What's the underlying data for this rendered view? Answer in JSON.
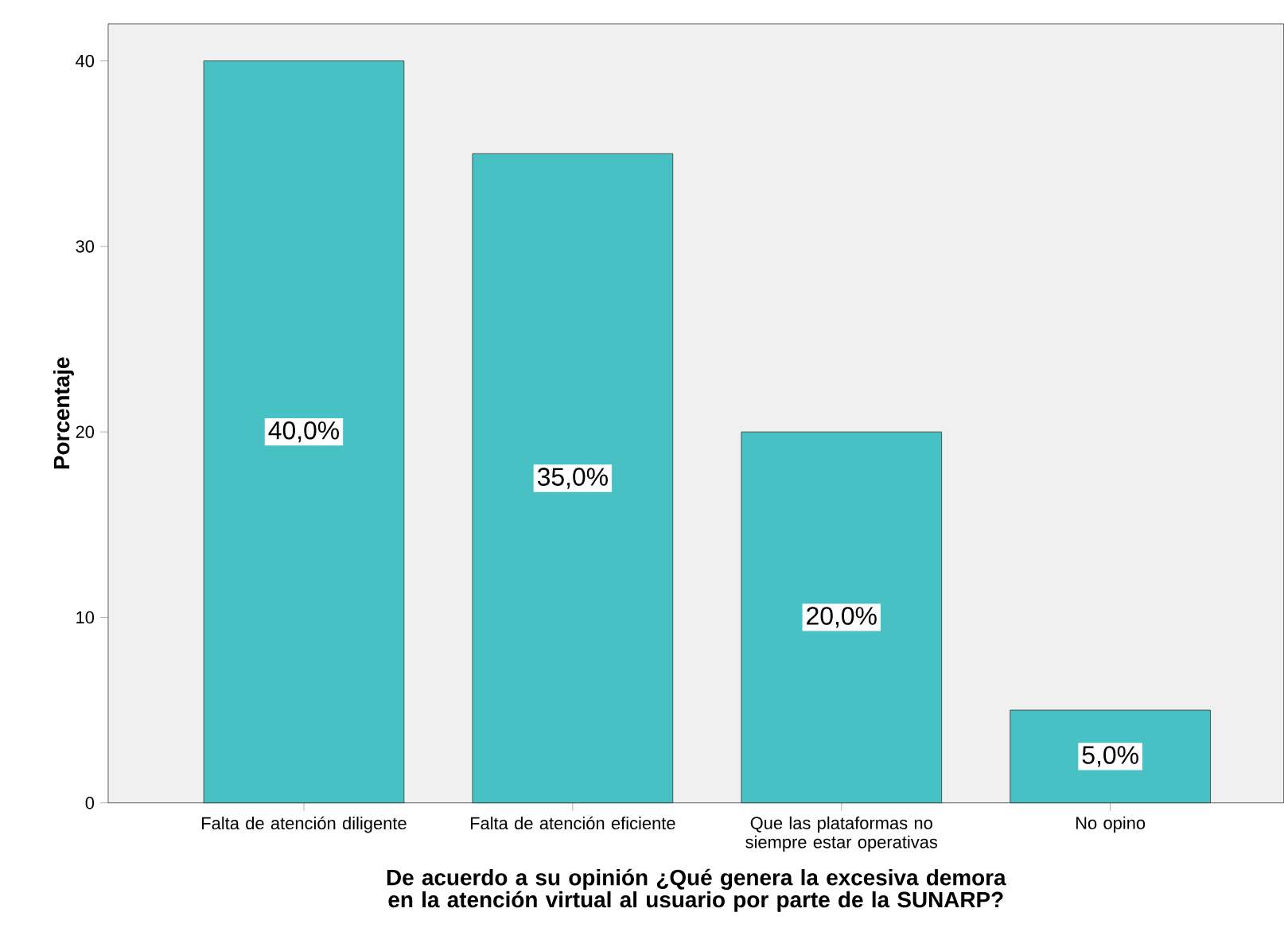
{
  "chart_data": {
    "type": "bar",
    "categories": [
      "Falta de atención diligente",
      "Falta de atención eficiente",
      "Que las plataformas no siempre estar operativas",
      "No opino"
    ],
    "values": [
      40,
      35,
      20,
      5
    ],
    "value_labels": [
      "40,0%",
      "35,0%",
      "20,0%",
      "5,0%"
    ],
    "color": "#48c1c4",
    "xlabel": "De acuerdo a su opinión ¿Qué genera la excesiva demora en la atención virtual al usuario por parte de la SUNARP?",
    "ylabel": "Porcentaje",
    "ylim": [
      0,
      42
    ],
    "yticks": [
      0,
      10,
      20,
      30,
      40
    ],
    "grid": false
  }
}
